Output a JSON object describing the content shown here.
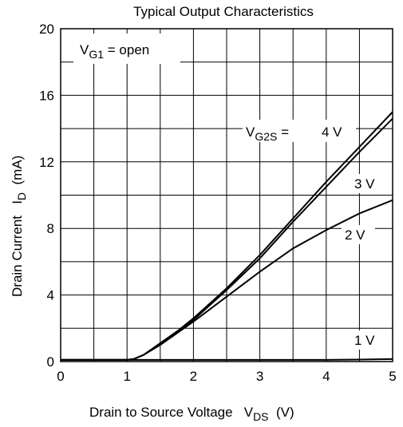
{
  "chart_data": {
    "type": "line",
    "title": "Typical Output Characteristics",
    "x_label": {
      "text": "Drain to Source Voltage   V",
      "sub": "DS",
      "rest": "  (V)"
    },
    "y_label": {
      "text": "Drain Current   I",
      "sub": "D",
      "rest": "  (mA)"
    },
    "xlim": [
      0,
      5
    ],
    "xticks": [
      0,
      1,
      2,
      3,
      4,
      5
    ],
    "ylim": [
      0,
      20
    ],
    "yticks": [
      0,
      4,
      8,
      12,
      16,
      20
    ],
    "x_minor_ticks": [
      0.5,
      1.5,
      2.5,
      3.5,
      4.5
    ],
    "y_minor_ticks": [
      2,
      6,
      10,
      14,
      18
    ],
    "grid": true,
    "annotations": [
      {
        "text": "V",
        "sub": "G1",
        "rest": " = open"
      },
      {
        "text": "V",
        "sub": "G2S",
        "rest": " = "
      }
    ],
    "x": [
      0,
      0.5,
      1,
      1.1,
      1.25,
      1.5,
      1.75,
      2,
      2.5,
      3,
      3.5,
      4,
      4.5,
      5
    ],
    "series": [
      {
        "name": "4 V",
        "color": "#000000",
        "values": [
          0.1,
          0.1,
          0.1,
          0.15,
          0.4,
          1.1,
          1.8,
          2.6,
          4.4,
          6.4,
          8.6,
          10.8,
          12.9,
          15.0
        ]
      },
      {
        "name": "3 V",
        "color": "#000000",
        "values": [
          0.1,
          0.1,
          0.1,
          0.15,
          0.4,
          1.1,
          1.8,
          2.5,
          4.3,
          6.2,
          8.4,
          10.5,
          12.6,
          14.6
        ]
      },
      {
        "name": "2 V",
        "color": "#000000",
        "values": [
          0.1,
          0.1,
          0.1,
          0.15,
          0.4,
          1.0,
          1.7,
          2.4,
          3.9,
          5.4,
          6.8,
          7.9,
          8.9,
          9.7
        ]
      },
      {
        "name": "1 V",
        "color": "#000000",
        "values": [
          0.1,
          0.1,
          0.1,
          0.1,
          0.1,
          0.1,
          0.1,
          0.1,
          0.1,
          0.1,
          0.1,
          0.1,
          0.12,
          0.15
        ]
      }
    ]
  }
}
